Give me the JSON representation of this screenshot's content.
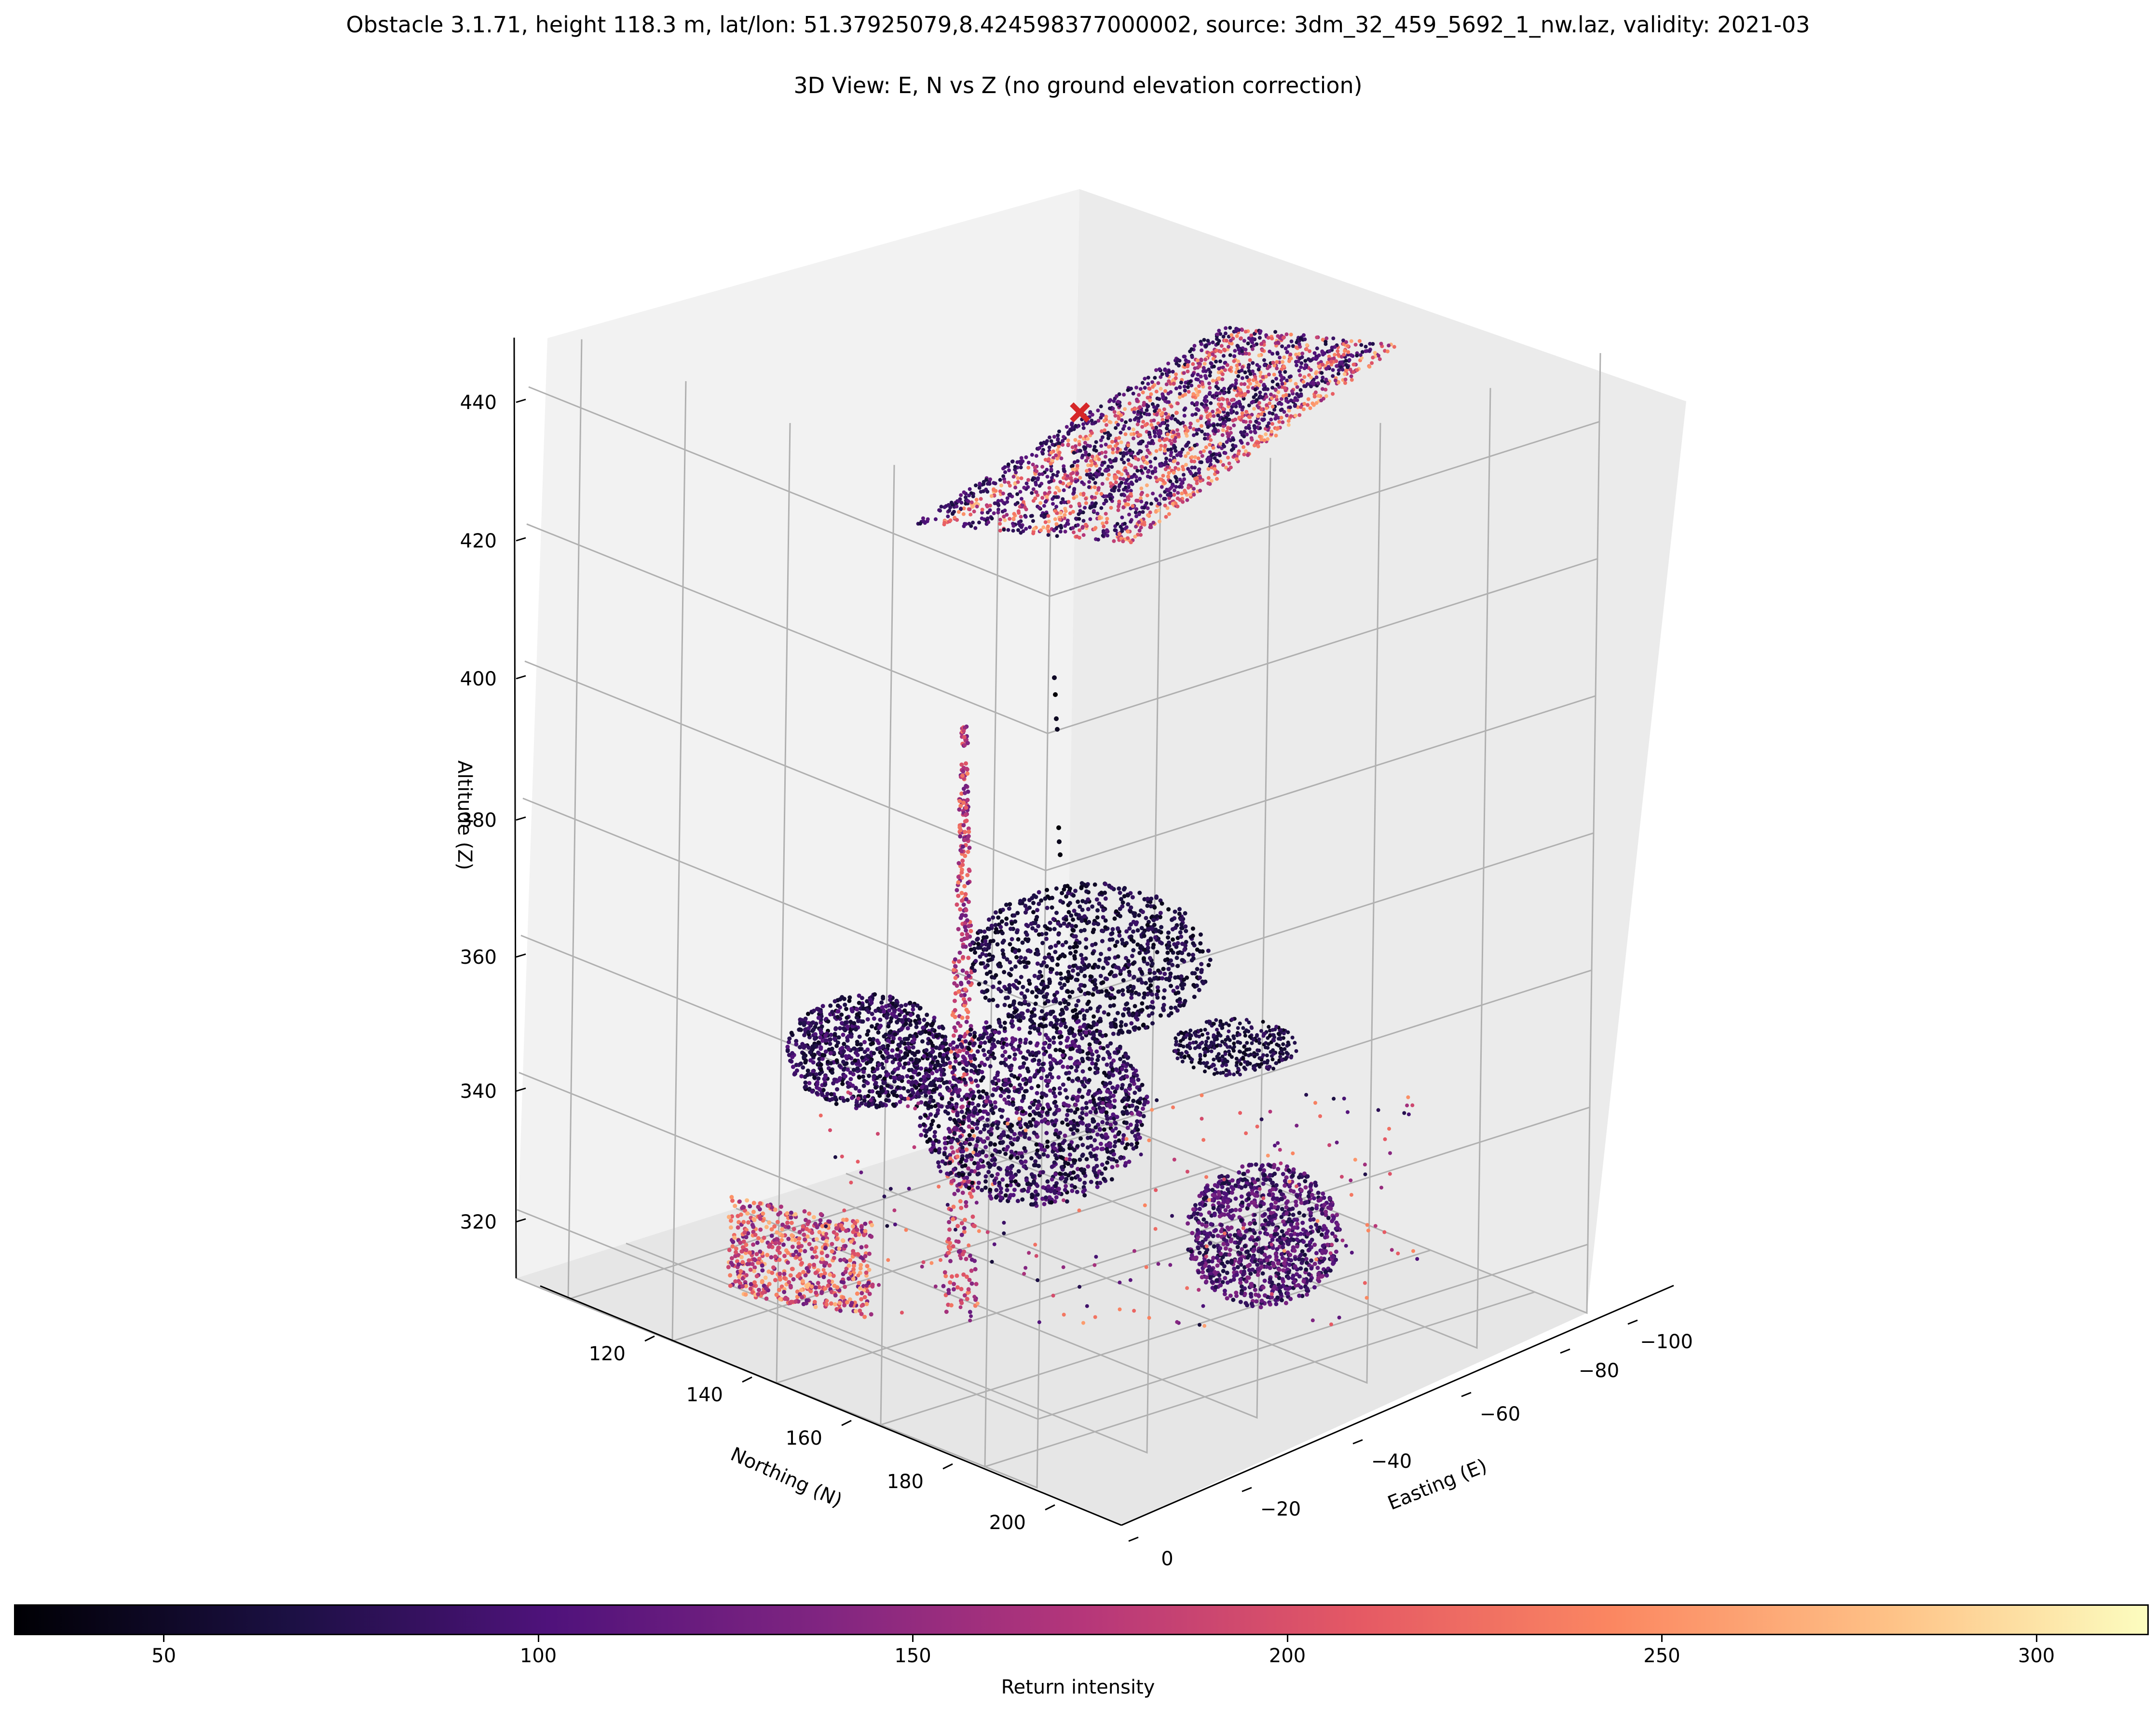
{
  "figure": {
    "title": "Obstacle 3.1.71, height 118.3 m, lat/lon: 51.37925079,8.424598377000002, source: 3dm_32_459_5692_1_nw.laz, validity: 2021-03",
    "subtitle": "3D View: E, N vs Z (no ground elevation correction)"
  },
  "chart_data": {
    "type": "scatter",
    "projection": "3d",
    "xlabel": "Easting (E)",
    "ylabel": "Northing (N)",
    "zlabel": "Altitude (Z)",
    "x_ticks": [
      "0",
      "−20",
      "−40",
      "−60",
      "−80",
      "−100"
    ],
    "y_ticks": [
      "120",
      "140",
      "160",
      "180",
      "200"
    ],
    "z_ticks": [
      "320",
      "340",
      "360",
      "380",
      "400",
      "420",
      "440"
    ],
    "xlim": [
      0,
      -100
    ],
    "ylim": [
      110,
      210
    ],
    "zlim": [
      310,
      450
    ],
    "grid": true,
    "colormap": "magma",
    "colorbar": {
      "label": "Return intensity",
      "ticks": [
        "50",
        "100",
        "150",
        "200",
        "250",
        "300"
      ],
      "range": [
        30,
        315
      ],
      "placement": "bottom"
    },
    "obstacle_marker": {
      "symbol": "x",
      "color": "#d62728",
      "z": 440
    },
    "clusters": [
      {
        "name": "elevated-plane",
        "z_range": [
          420,
          446
        ],
        "intensity_range": [
          60,
          280
        ]
      },
      {
        "name": "mast",
        "z_range": [
          318,
          392
        ],
        "intensity_range": [
          120,
          240
        ]
      },
      {
        "name": "tree-cluster-left",
        "z_range": [
          332,
          350
        ],
        "intensity_range": [
          40,
          110
        ]
      },
      {
        "name": "tree-cluster-center",
        "z_range": [
          325,
          362
        ],
        "intensity_range": [
          40,
          120
        ]
      },
      {
        "name": "tree-cluster-right",
        "z_range": [
          318,
          340
        ],
        "intensity_range": [
          60,
          140
        ]
      },
      {
        "name": "vegetation-far",
        "z_range": [
          338,
          352
        ],
        "intensity_range": [
          40,
          90
        ]
      },
      {
        "name": "ground-strips-left",
        "z_range": [
          316,
          332
        ],
        "intensity_range": [
          120,
          280
        ]
      },
      {
        "name": "sparse-points",
        "z_range": [
          375,
          400
        ],
        "intensity_range": [
          30,
          60
        ]
      }
    ]
  }
}
